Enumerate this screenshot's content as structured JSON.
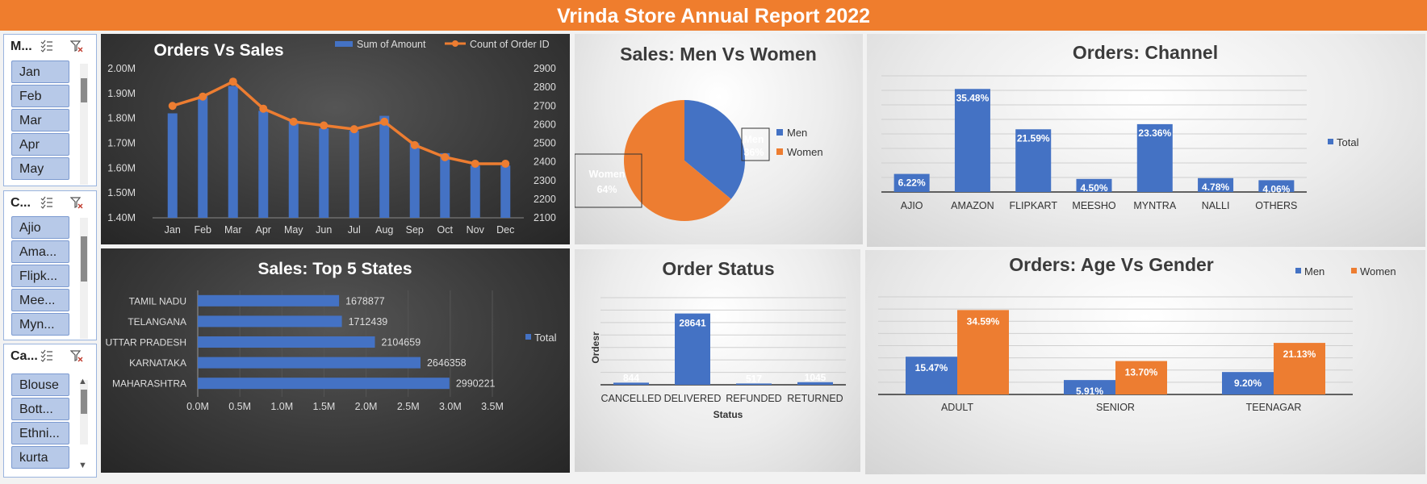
{
  "header": {
    "title": "Vrinda Store Annual Report 2022"
  },
  "slicers": [
    {
      "title": "M...",
      "items": [
        "Jan",
        "Feb",
        "Mar",
        "Apr",
        "May"
      ]
    },
    {
      "title": "C...",
      "items": [
        "Ajio",
        "Ama...",
        "Flipk...",
        "Mee...",
        "Myn..."
      ]
    },
    {
      "title": "Ca...",
      "items": [
        "Blouse",
        "Bott...",
        "Ethni...",
        "kurta"
      ]
    }
  ],
  "colors": {
    "blue": "#4472c4",
    "orange": "#ed7d31",
    "banner": "#ef7d2d"
  },
  "chart_data": [
    {
      "id": "orders_vs_sales",
      "type": "bar",
      "title": "Orders Vs Sales",
      "categories": [
        "Jan",
        "Feb",
        "Mar",
        "Apr",
        "May",
        "Jun",
        "Jul",
        "Aug",
        "Sep",
        "Oct",
        "Nov",
        "Dec"
      ],
      "series": [
        {
          "name": "Sum of Amount",
          "type": "bar",
          "axis": "left",
          "values": [
            1.82,
            1.89,
            1.93,
            1.83,
            1.79,
            1.76,
            1.75,
            1.81,
            1.7,
            1.66,
            1.61,
            1.61
          ]
        },
        {
          "name": "Count of Order ID",
          "type": "line",
          "axis": "right",
          "values": [
            2700,
            2750,
            2830,
            2685,
            2615,
            2595,
            2575,
            2615,
            2490,
            2425,
            2390,
            2390
          ]
        }
      ],
      "ylim_left": [
        1.4,
        2.0
      ],
      "ylim_right": [
        2100,
        2900
      ],
      "yticks_left": [
        "1.40M",
        "1.50M",
        "1.60M",
        "1.70M",
        "1.80M",
        "1.90M",
        "2.00M"
      ],
      "yticks_right": [
        "2100",
        "2200",
        "2300",
        "2400",
        "2500",
        "2600",
        "2700",
        "2800",
        "2900"
      ],
      "legend": "top"
    },
    {
      "id": "sales_men_women",
      "type": "pie",
      "title": "Sales: Men Vs Women",
      "categories": [
        "Men",
        "Women"
      ],
      "values": [
        36,
        64
      ],
      "labels": [
        "Men\n36%",
        "Women\n64%"
      ],
      "legend": "right"
    },
    {
      "id": "orders_channel",
      "type": "bar",
      "title": "Orders: Channel",
      "categories": [
        "AJIO",
        "AMAZON",
        "FLIPKART",
        "MEESHO",
        "MYNTRA",
        "NALLI",
        "OTHERS"
      ],
      "series": [
        {
          "name": "Total",
          "values": [
            6.22,
            35.48,
            21.59,
            4.5,
            23.36,
            4.78,
            4.06
          ]
        }
      ],
      "data_labels": [
        "6.22%",
        "35.48%",
        "21.59%",
        "4.50%",
        "23.36%",
        "4.78%",
        "4.06%"
      ],
      "ylim": [
        0,
        40
      ],
      "legend": "right"
    },
    {
      "id": "top5_states",
      "type": "bar",
      "orientation": "horizontal",
      "title": "Sales: Top 5 States",
      "categories": [
        "TAMIL NADU",
        "TELANGANA",
        "UTTAR PRADESH",
        "KARNATAKA",
        "MAHARASHTRA"
      ],
      "series": [
        {
          "name": "Total",
          "values": [
            1678877,
            1712439,
            2104659,
            2646358,
            2990221
          ]
        }
      ],
      "xlim": [
        0,
        3500000
      ],
      "xticks": [
        "0.0M",
        "0.5M",
        "1.0M",
        "1.5M",
        "2.0M",
        "2.5M",
        "3.0M",
        "3.5M"
      ],
      "legend": "right"
    },
    {
      "id": "order_status",
      "type": "bar",
      "title": "Order Status",
      "categories": [
        "CANCELLED",
        "DELIVERED",
        "REFUNDED",
        "RETURNED"
      ],
      "series": [
        {
          "values": [
            844,
            28641,
            517,
            1045
          ]
        }
      ],
      "xlabel": "Status",
      "ylabel": "Ordesr",
      "ylim": [
        0,
        35000
      ]
    },
    {
      "id": "age_gender",
      "type": "bar",
      "title": "Orders: Age Vs Gender",
      "categories": [
        "ADULT",
        "SENIOR",
        "TEENAGAR"
      ],
      "series": [
        {
          "name": "Men",
          "values": [
            15.47,
            5.91,
            9.2
          ],
          "data_labels": [
            "15.47%",
            "5.91%",
            "9.20%"
          ]
        },
        {
          "name": "Women",
          "values": [
            34.59,
            13.7,
            21.13
          ],
          "data_labels": [
            "34.59%",
            "13.70%",
            "21.13%"
          ]
        }
      ],
      "ylim": [
        0,
        40
      ],
      "legend": "top-right"
    }
  ]
}
